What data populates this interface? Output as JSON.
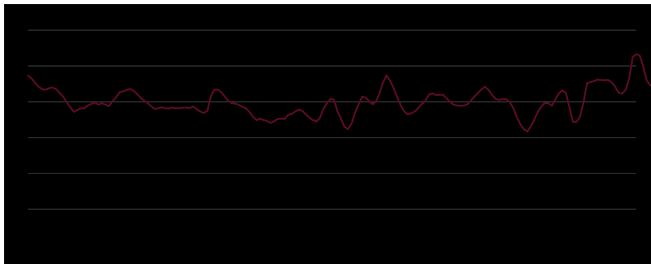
{
  "colors": {
    "background": "#000000",
    "gridline": "#4a4a4a",
    "series": "#5a0a2a"
  },
  "chart_data": {
    "type": "line",
    "title": "",
    "xlabel": "",
    "ylabel": "",
    "grid": true,
    "legend": "none",
    "x_range": [
      0,
      173
    ],
    "ylim": [
      0,
      6
    ],
    "gridlines_y": [
      1,
      2,
      3,
      4,
      5,
      6
    ],
    "series": [
      {
        "values": [
          4.73,
          4.65,
          4.53,
          4.42,
          4.35,
          4.34,
          4.38,
          4.4,
          4.35,
          4.24,
          4.14,
          3.98,
          3.85,
          3.72,
          3.77,
          3.82,
          3.82,
          3.9,
          3.94,
          3.98,
          3.92,
          3.96,
          3.92,
          3.88,
          4.02,
          4.12,
          4.27,
          4.29,
          4.33,
          4.36,
          4.31,
          4.22,
          4.11,
          4.04,
          3.96,
          3.88,
          3.8,
          3.82,
          3.85,
          3.82,
          3.81,
          3.84,
          3.82,
          3.82,
          3.84,
          3.84,
          3.83,
          3.87,
          3.79,
          3.73,
          3.69,
          3.75,
          4.16,
          4.34,
          4.34,
          4.26,
          4.14,
          4.02,
          3.96,
          3.95,
          3.91,
          3.86,
          3.82,
          3.71,
          3.58,
          3.49,
          3.53,
          3.49,
          3.46,
          3.41,
          3.46,
          3.52,
          3.53,
          3.52,
          3.64,
          3.66,
          3.73,
          3.78,
          3.75,
          3.65,
          3.56,
          3.49,
          3.45,
          3.55,
          3.8,
          3.96,
          4.08,
          4.06,
          3.73,
          3.53,
          3.3,
          3.24,
          3.39,
          3.69,
          3.92,
          4.14,
          4.12,
          4.02,
          3.93,
          4.01,
          4.26,
          4.55,
          4.74,
          4.58,
          4.38,
          4.13,
          3.9,
          3.73,
          3.65,
          3.68,
          3.73,
          3.83,
          3.94,
          4.02,
          4.2,
          4.24,
          4.19,
          4.19,
          4.2,
          4.1,
          4.0,
          3.92,
          3.9,
          3.89,
          3.9,
          3.93,
          4.04,
          4.15,
          4.25,
          4.35,
          4.42,
          4.33,
          4.19,
          4.08,
          4.05,
          4.08,
          4.07,
          3.99,
          3.83,
          3.58,
          3.38,
          3.24,
          3.17,
          3.31,
          3.5,
          3.72,
          3.87,
          3.97,
          3.96,
          3.89,
          4.07,
          4.24,
          4.32,
          4.25,
          3.84,
          3.44,
          3.44,
          3.58,
          3.99,
          4.52,
          4.55,
          4.58,
          4.62,
          4.61,
          4.6,
          4.61,
          4.55,
          4.42,
          4.25,
          4.23,
          4.34,
          4.65,
          5.25,
          5.33,
          5.29,
          4.99,
          4.59,
          4.46
        ]
      }
    ]
  }
}
